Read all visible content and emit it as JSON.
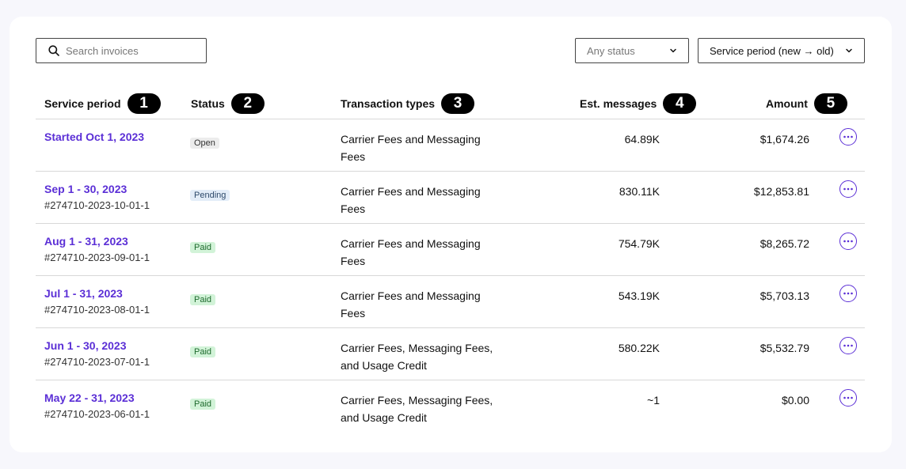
{
  "toolbar": {
    "search_placeholder": "Search invoices",
    "status_filter": "Any status",
    "sort": "Service period (new → old)"
  },
  "columns": [
    {
      "label": "Service period",
      "marker": "1"
    },
    {
      "label": "Status",
      "marker": "2"
    },
    {
      "label": "Transaction types",
      "marker": "3"
    },
    {
      "label": "Est. messages",
      "marker": "4"
    },
    {
      "label": "Amount",
      "marker": "5"
    }
  ],
  "rows": [
    {
      "period": "Started Oct 1, 2023",
      "invoice": "",
      "status": "Open",
      "status_kind": "open",
      "types_l1": "Carrier Fees and Messaging",
      "types_l2": "Fees",
      "messages": "64.89K",
      "amount": "$1,674.26"
    },
    {
      "period": "Sep 1 - 30, 2023",
      "invoice": "#274710-2023-10-01-1",
      "status": "Pending",
      "status_kind": "pending",
      "types_l1": "Carrier Fees and Messaging",
      "types_l2": "Fees",
      "messages": "830.11K",
      "amount": "$12,853.81"
    },
    {
      "period": "Aug 1 - 31, 2023",
      "invoice": "#274710-2023-09-01-1",
      "status": "Paid",
      "status_kind": "paid",
      "types_l1": "Carrier Fees and Messaging",
      "types_l2": "Fees",
      "messages": "754.79K",
      "amount": "$8,265.72"
    },
    {
      "period": "Jul 1 - 31, 2023",
      "invoice": "#274710-2023-08-01-1",
      "status": "Paid",
      "status_kind": "paid",
      "types_l1": "Carrier Fees and Messaging",
      "types_l2": "Fees",
      "messages": "543.19K",
      "amount": "$5,703.13"
    },
    {
      "period": "Jun 1 - 30, 2023",
      "invoice": "#274710-2023-07-01-1",
      "status": "Paid",
      "status_kind": "paid",
      "types_l1": "Carrier Fees, Messaging Fees,",
      "types_l2": "and Usage Credit",
      "messages": "580.22K",
      "amount": "$5,532.79"
    },
    {
      "period": "May 22 - 31, 2023",
      "invoice": "#274710-2023-06-01-1",
      "status": "Paid",
      "status_kind": "paid",
      "types_l1": "Carrier Fees, Messaging Fees,",
      "types_l2": "and Usage Credit",
      "messages": "~1",
      "amount": "$0.00"
    }
  ],
  "colors": {
    "accent": "#5b2fd6",
    "open_pill": "#ececec",
    "pending_pill": "#e3edf8",
    "paid_pill": "#d2f3d8"
  },
  "icons": {
    "search": "search-icon",
    "dropdown": "chevron-down-icon",
    "row_menu": "more-horizontal-icon"
  }
}
